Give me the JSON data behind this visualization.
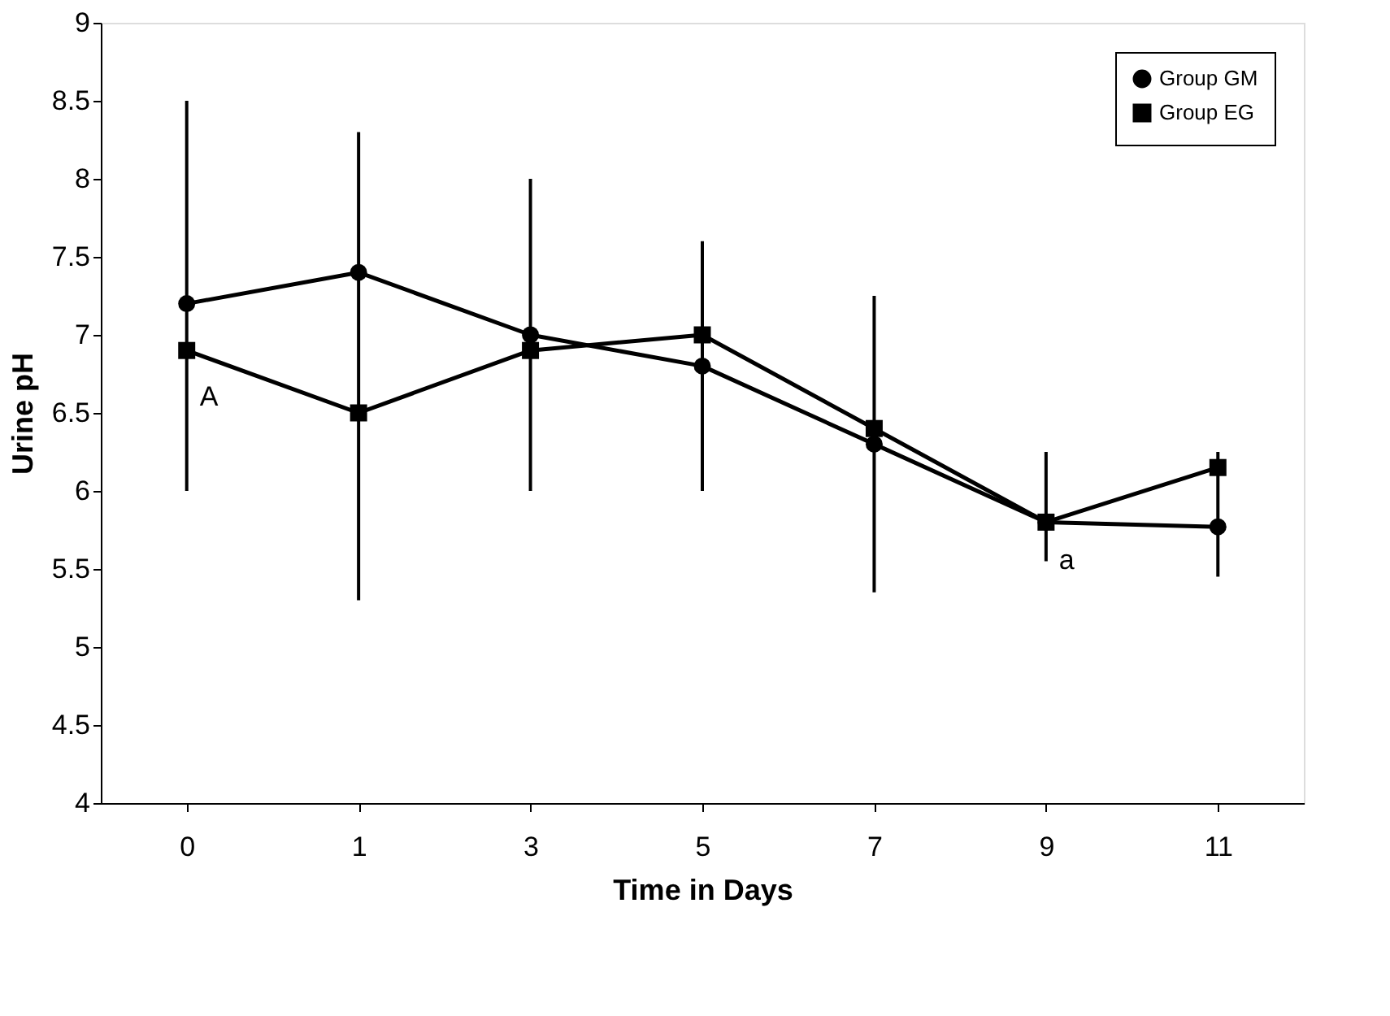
{
  "chart_data": {
    "type": "line",
    "xlabel": "Time in Days",
    "ylabel": "Urine pH",
    "categories": [
      "0",
      "1",
      "3",
      "5",
      "7",
      "9",
      "11"
    ],
    "series": [
      {
        "name": "Group GM",
        "color": "#000000",
        "marker": "circle",
        "values": [
          7.2,
          7.4,
          7.0,
          6.8,
          6.3,
          5.8,
          5.77
        ],
        "errors": [
          [
            6.0,
            8.5
          ],
          [
            5.3,
            8.3
          ],
          [
            6.0,
            8.0
          ],
          [
            6.0,
            7.6
          ],
          [
            5.35,
            7.25
          ],
          [
            5.55,
            6.25
          ],
          [
            5.45,
            6.25
          ]
        ]
      },
      {
        "name": "Group EG",
        "color": "#000000",
        "marker": "square",
        "values": [
          6.9,
          6.5,
          6.9,
          7.0,
          6.4,
          5.8,
          6.15
        ]
      }
    ],
    "ylim": [
      4,
      9
    ],
    "yticks": [
      4,
      4.5,
      5,
      5.5,
      6,
      6.5,
      7,
      7.5,
      8,
      8.5,
      9
    ],
    "annotations": [
      {
        "text": "A",
        "x": "0",
        "y": 6.6
      },
      {
        "text": "a",
        "x": "9",
        "y": 5.55
      }
    ],
    "legend": "top right",
    "grid": false,
    "line_style": "solid"
  }
}
